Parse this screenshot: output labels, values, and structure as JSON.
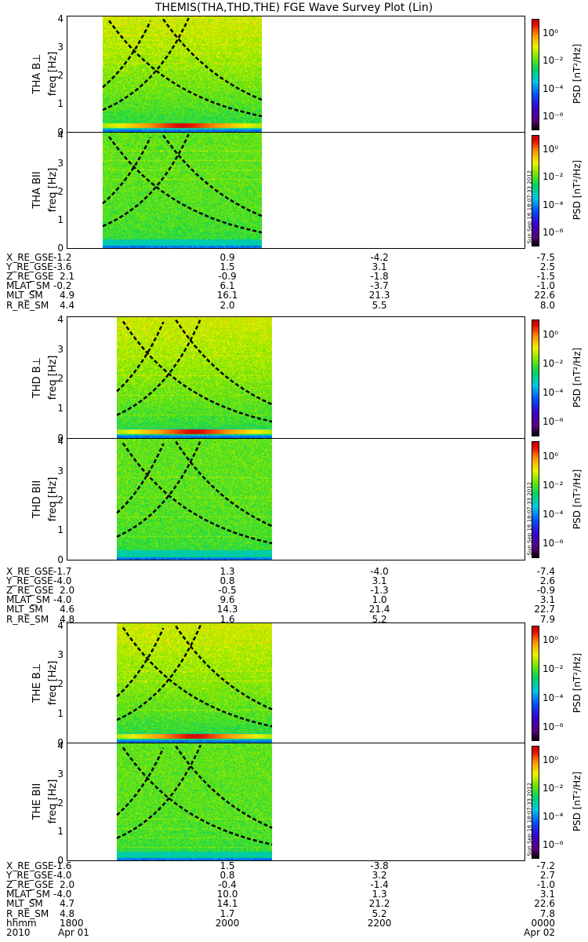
{
  "title": "THEMIS(THA,THD,THE) FGE Wave Survey Plot (Lin)",
  "freq_label": "freq [Hz]",
  "freq_ticks": [
    "0",
    "1",
    "2",
    "3",
    "4"
  ],
  "colorbar": {
    "label": "PSD [nT²/Hz]",
    "ticks": [
      "10⁰",
      "10⁻²",
      "10⁻⁴",
      "10⁻⁶"
    ]
  },
  "timestamp": "Sun Sep 16 18:07:33 2012",
  "panels": [
    {
      "name": "THA B⊥",
      "label": "THA B⊥"
    },
    {
      "name": "THA BII",
      "label": "THA BII"
    },
    {
      "name": "THD B⊥",
      "label": "THD B⊥"
    },
    {
      "name": "THD BII",
      "label": "THD BII"
    },
    {
      "name": "THE B⊥",
      "label": "THE B⊥"
    },
    {
      "name": "THE BII",
      "label": "THE BII"
    }
  ],
  "orbit_blocks": [
    {
      "probe": "THA",
      "rows": [
        {
          "label": "X_RE_GSE",
          "values": [
            "-1.2",
            "0.9",
            "-4.2",
            "-7.5"
          ]
        },
        {
          "label": "Y_RE_GSE",
          "values": [
            "-3.6",
            "1.5",
            "3.1",
            "2.5"
          ]
        },
        {
          "label": "Z_RE_GSE",
          "values": [
            "2.1",
            "-0.9",
            "-1.8",
            "-1.5"
          ]
        },
        {
          "label": "MLAT_SM",
          "values": [
            "-0.2",
            "6.1",
            "-3.7",
            "-1.0"
          ]
        },
        {
          "label": "MLT_SM",
          "values": [
            "4.9",
            "16.1",
            "21.3",
            "22.6"
          ]
        },
        {
          "label": "R_RE_SM",
          "values": [
            "4.4",
            "2.0",
            "5.5",
            "8.0"
          ]
        }
      ]
    },
    {
      "probe": "THD",
      "rows": [
        {
          "label": "X_RE_GSE",
          "values": [
            "-1.7",
            "1.3",
            "-4.0",
            "-7.4"
          ]
        },
        {
          "label": "Y_RE_GSE",
          "values": [
            "-4.0",
            "0.8",
            "3.1",
            "2.6"
          ]
        },
        {
          "label": "Z_RE_GSE",
          "values": [
            "2.0",
            "-0.5",
            "-1.3",
            "-0.9"
          ]
        },
        {
          "label": "MLAT_SM",
          "values": [
            "-4.0",
            "9.6",
            "1.0",
            "3.1"
          ]
        },
        {
          "label": "MLT_SM",
          "values": [
            "4.6",
            "14.3",
            "21.4",
            "22.7"
          ]
        },
        {
          "label": "R_RE_SM",
          "values": [
            "4.8",
            "1.6",
            "5.2",
            "7.9"
          ]
        }
      ]
    },
    {
      "probe": "THE",
      "rows": [
        {
          "label": "X_RE_GSE",
          "values": [
            "-1.6",
            "1.5",
            "-3.8",
            "-7.2"
          ]
        },
        {
          "label": "Y_RE_GSE",
          "values": [
            "-4.0",
            "0.8",
            "3.2",
            "2.7"
          ]
        },
        {
          "label": "Z_RE_GSE",
          "values": [
            "2.0",
            "-0.4",
            "-1.4",
            "-1.0"
          ]
        },
        {
          "label": "MLAT_SM",
          "values": [
            "-4.0",
            "10.0",
            "1.3",
            "3.1"
          ]
        },
        {
          "label": "MLT_SM",
          "values": [
            "4.7",
            "14.1",
            "21.2",
            "22.6"
          ]
        },
        {
          "label": "R_RE_SM",
          "values": [
            "4.8",
            "1.7",
            "5.2",
            "7.8"
          ]
        },
        {
          "label": "hhmm",
          "values": [
            "1800",
            "2000",
            "2200",
            "0000"
          ]
        },
        {
          "label": "2010",
          "values": [
            "Apr 01",
            "",
            "",
            "Apr 02"
          ]
        }
      ]
    }
  ],
  "chart_data": {
    "type": "heatmap",
    "title": "THEMIS(THA,THD,THE) FGE Wave Survey Plot (Lin)",
    "x_ticks": [
      "1800",
      "2000",
      "2200",
      "0000"
    ],
    "x_tick_hours": [
      18,
      20,
      22,
      24
    ],
    "x_range_hours": [
      17.5,
      24.0
    ],
    "ylabel": "freq [Hz]",
    "ylim": [
      0,
      4.1
    ],
    "y_ticks": [
      0,
      1,
      2,
      3,
      4
    ],
    "colorbar_label": "PSD [nT²/Hz]",
    "colorbar_range_log10": [
      -7,
      1
    ],
    "colorbar_ticks_log10": [
      0,
      -2,
      -4,
      -6
    ],
    "scale": "linear",
    "series": [
      {
        "name": "THA B⊥",
        "data_start_h": 18.0,
        "data_end_h": 20.25
      },
      {
        "name": "THA BII",
        "data_start_h": 18.0,
        "data_end_h": 20.25
      },
      {
        "name": "THD B⊥",
        "data_start_h": 18.2,
        "data_end_h": 20.4
      },
      {
        "name": "THD BII",
        "data_start_h": 18.2,
        "data_end_h": 20.4
      },
      {
        "name": "THE B⊥",
        "data_start_h": 18.2,
        "data_end_h": 20.4
      },
      {
        "name": "THE BII",
        "data_start_h": 18.2,
        "data_end_h": 20.4
      }
    ]
  }
}
